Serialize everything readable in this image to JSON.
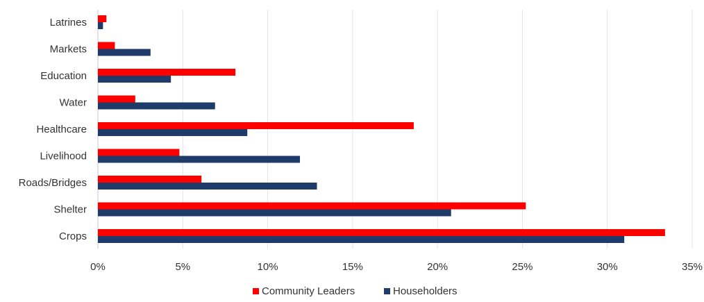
{
  "chart_data": {
    "type": "bar",
    "orientation": "horizontal",
    "categories": [
      "Latrines",
      "Markets",
      "Education",
      "Water",
      "Healthcare",
      "Livelihood",
      "Roads/Bridges",
      "Shelter",
      "Crops"
    ],
    "series": [
      {
        "name": "Community Leaders",
        "color": "#ff0000",
        "values": [
          0.5,
          1.0,
          8.1,
          2.2,
          18.6,
          4.8,
          6.1,
          25.2,
          33.4
        ]
      },
      {
        "name": "Householders",
        "color": "#1f3b6a",
        "values": [
          0.3,
          3.1,
          4.3,
          6.9,
          8.8,
          11.9,
          12.9,
          20.8,
          31.0
        ]
      }
    ],
    "xlim": [
      0,
      35
    ],
    "xticks": [
      "0%",
      "5%",
      "10%",
      "15%",
      "20%",
      "25%",
      "30%",
      "35%"
    ],
    "xtick_values": [
      0,
      5,
      10,
      15,
      20,
      25,
      30,
      35
    ],
    "grid": "vertical",
    "legend": "bottom-center"
  }
}
